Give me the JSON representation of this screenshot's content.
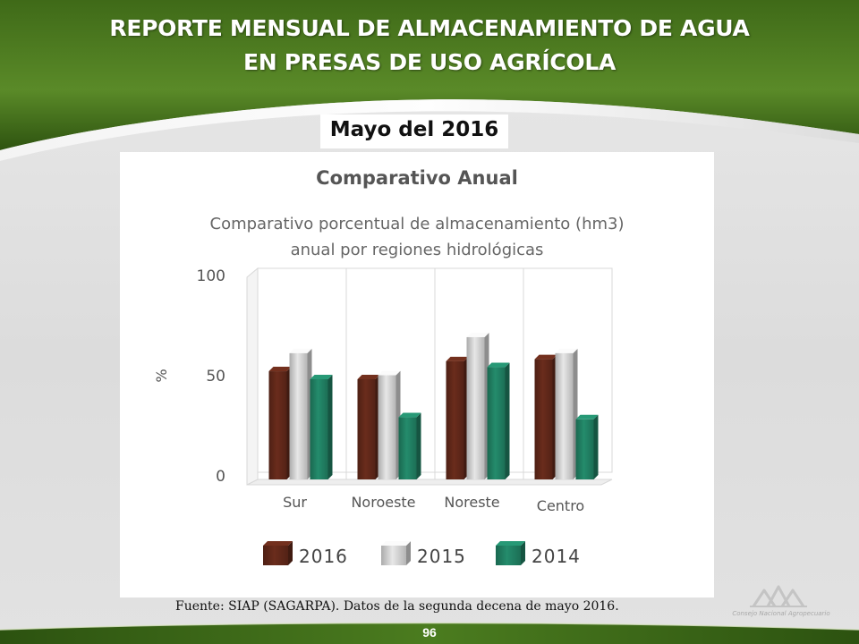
{
  "header": {
    "title_line1": "REPORTE MENSUAL DE ALMACENAMIENTO DE AGUA",
    "title_line2": "EN PRESAS DE USO AGRÍCOLA",
    "subtitle": "Mayo del 2016"
  },
  "chart_data": {
    "type": "bar",
    "heading": "Comparativo Anual",
    "title": "Comparativo porcentual de almacenamiento (hm3)",
    "title_line2": "anual por regiones hidrológicas",
    "ylabel": "%",
    "ylim": [
      0,
      100
    ],
    "yticks": [
      "0",
      "50",
      "100"
    ],
    "categories": [
      "Sur",
      "Noroeste",
      "Noreste",
      "Centro"
    ],
    "series": [
      {
        "name": "2016",
        "color": "#5c2618",
        "values": [
          54,
          50,
          59,
          60
        ]
      },
      {
        "name": "2015",
        "color": "#c9c9c9",
        "values": [
          63,
          52,
          71,
          63
        ]
      },
      {
        "name": "2014",
        "color": "#1f7a5e",
        "values": [
          50,
          31,
          56,
          30
        ]
      }
    ],
    "grid": false,
    "legend": "bottom",
    "style": "3d-bar"
  },
  "footer": {
    "source": "Fuente: SIAP (SAGARPA). Datos de la segunda decena de mayo 2016.",
    "page_number": "96",
    "logo_text": "Consejo Nacional Agropecuario"
  },
  "theme": {
    "header_green": "#4f7a22",
    "header_green_dark": "#2f5212",
    "bottom_green": "#3f6b17"
  }
}
